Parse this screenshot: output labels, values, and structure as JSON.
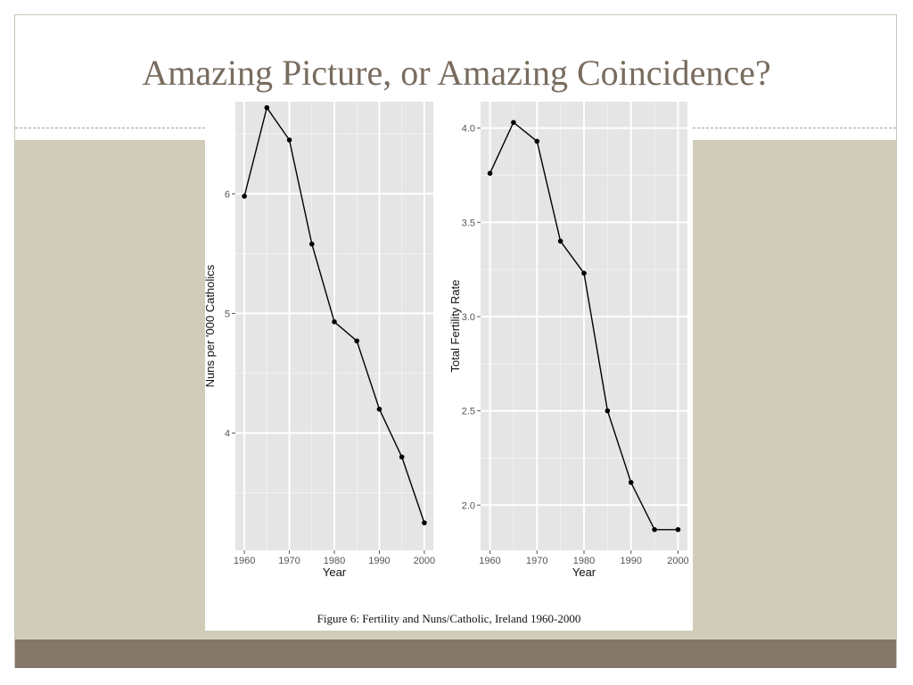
{
  "slide": {
    "title": "Amazing Picture, or Amazing Coincidence?",
    "caption": "Figure 6: Fertility and Nuns/Catholic, Ireland 1960-2000",
    "colors": {
      "title": "#786c5f",
      "side_panel": "#d1ccb9",
      "footer": "#857769",
      "plot_background": "#e5e5e5",
      "grid": "#ffffff",
      "line": "#000000"
    }
  },
  "chart_data": [
    {
      "type": "line",
      "title": "",
      "xlabel": "Year",
      "ylabel": "Nuns per '000 Catholics",
      "xlim": [
        1958,
        2002
      ],
      "ylim": [
        3.02,
        6.77
      ],
      "x_ticks": [
        1960,
        1970,
        1980,
        1990,
        2000
      ],
      "y_ticks": [
        4,
        5,
        6
      ],
      "grid": true,
      "legend": "none",
      "series": [
        {
          "x": [
            1960,
            1965,
            1970,
            1975,
            1980,
            1985,
            1990,
            1995,
            2000
          ],
          "y": [
            5.98,
            6.72,
            6.45,
            5.58,
            4.93,
            4.77,
            4.2,
            3.8,
            3.25
          ]
        }
      ]
    },
    {
      "type": "line",
      "title": "",
      "xlabel": "Year",
      "ylabel": "Total Fertility Rate",
      "xlim": [
        1958,
        2002
      ],
      "ylim": [
        1.76,
        4.14
      ],
      "x_ticks": [
        1960,
        1970,
        1980,
        1990,
        2000
      ],
      "y_ticks": [
        2.0,
        2.5,
        3.0,
        3.5,
        4.0
      ],
      "grid": true,
      "legend": "none",
      "series": [
        {
          "x": [
            1960,
            1965,
            1970,
            1975,
            1980,
            1985,
            1990,
            1995,
            2000
          ],
          "y": [
            3.76,
            4.03,
            3.93,
            3.4,
            3.23,
            2.5,
            2.12,
            1.87,
            1.87
          ]
        }
      ]
    }
  ]
}
